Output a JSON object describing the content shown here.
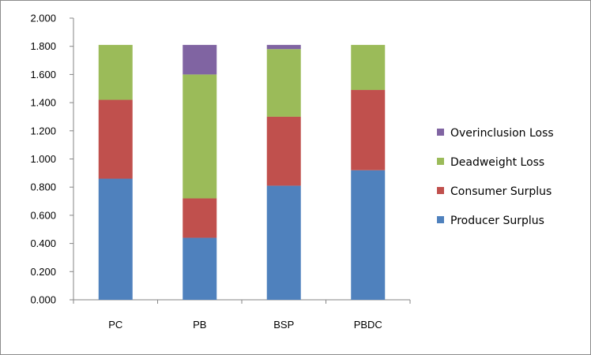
{
  "chart_data": {
    "type": "bar",
    "stacked": true,
    "title": "",
    "xlabel": "",
    "ylabel": "",
    "categories": [
      "PC",
      "PB",
      "BSP",
      "PBDC"
    ],
    "series": [
      {
        "name": "Producer Surplus",
        "color": "#4f81bd",
        "values": [
          0.86,
          0.44,
          0.81,
          0.92
        ]
      },
      {
        "name": "Consumer Surplus",
        "color": "#c0504d",
        "values": [
          0.56,
          0.28,
          0.49,
          0.57
        ]
      },
      {
        "name": "Deadweight Loss",
        "color": "#9bbb59",
        "values": [
          0.39,
          0.88,
          0.48,
          0.32
        ]
      },
      {
        "name": "Overinclusion Loss",
        "color": "#8064a2",
        "values": [
          0.0,
          0.21,
          0.03,
          0.0
        ]
      }
    ],
    "ylim": [
      0,
      2
    ],
    "yticks": [
      0,
      0.2,
      0.4,
      0.6,
      0.8,
      1.0,
      1.2,
      1.4,
      1.6,
      1.8,
      2.0
    ],
    "ytick_labels": [
      "0.000",
      "0.200",
      "0.400",
      "0.600",
      "0.800",
      "1.000",
      "1.200",
      "1.400",
      "1.600",
      "1.800",
      "2.000"
    ],
    "legend_order": [
      "Overinclusion Loss",
      "Deadweight Loss",
      "Consumer Surplus",
      "Producer Surplus"
    ],
    "legend_position": "right",
    "grid": false
  }
}
